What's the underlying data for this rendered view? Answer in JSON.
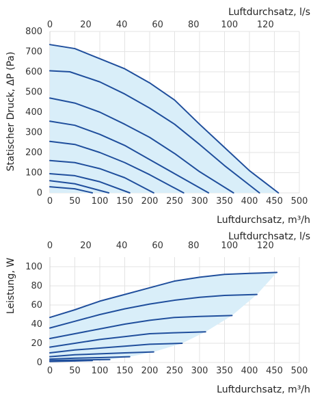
{
  "chart_data": [
    {
      "type": "line",
      "title": "",
      "xlabel": "Luftdurchsatz, m³/h",
      "x2label": "Luftdurchsatz, l/s",
      "ylabel": "Statischer Druck, ΔP (Pa)",
      "xlim": [
        0,
        500
      ],
      "ylim": [
        0,
        800
      ],
      "x2lim": [
        0,
        138.9
      ],
      "xticks": [
        "0",
        "50",
        "100",
        "150",
        "200",
        "250",
        "300",
        "350",
        "400",
        "450",
        "500"
      ],
      "x2ticks": [
        "0",
        "20",
        "40",
        "60",
        "80",
        "100",
        "120"
      ],
      "yticks": [
        "0",
        "100",
        "200",
        "300",
        "400",
        "500",
        "600",
        "700",
        "800"
      ],
      "grid": true,
      "fill_color": "#d9eef9",
      "line_color": "#1f4e9c",
      "series": [
        {
          "x": [
            0,
            50,
            100,
            150,
            200,
            250,
            300,
            350,
            400,
            458
          ],
          "y": [
            735,
            715,
            665,
            615,
            545,
            460,
            340,
            225,
            110,
            0
          ]
        },
        {
          "x": [
            0,
            40,
            100,
            150,
            200,
            250,
            300,
            350,
            420
          ],
          "y": [
            605,
            600,
            550,
            490,
            420,
            340,
            240,
            135,
            0
          ]
        },
        {
          "x": [
            0,
            50,
            100,
            150,
            200,
            250,
            300,
            368
          ],
          "y": [
            470,
            445,
            400,
            340,
            275,
            195,
            105,
            0
          ]
        },
        {
          "x": [
            0,
            50,
            100,
            150,
            200,
            250,
            318
          ],
          "y": [
            355,
            335,
            290,
            235,
            165,
            95,
            0
          ]
        },
        {
          "x": [
            0,
            50,
            100,
            150,
            200,
            268
          ],
          "y": [
            255,
            240,
            200,
            150,
            90,
            0
          ]
        },
        {
          "x": [
            0,
            50,
            100,
            150,
            208
          ],
          "y": [
            160,
            150,
            120,
            75,
            0
          ]
        },
        {
          "x": [
            0,
            50,
            100,
            160
          ],
          "y": [
            95,
            85,
            55,
            0
          ]
        },
        {
          "x": [
            0,
            50,
            118
          ],
          "y": [
            60,
            45,
            0
          ]
        },
        {
          "x": [
            0,
            50,
            85
          ],
          "y": [
            30,
            20,
            0
          ]
        }
      ]
    },
    {
      "type": "line",
      "title": "",
      "xlabel": "Luftdurchsatz, m³/h",
      "x2label": "Luftdurchsatz, l/s",
      "ylabel": "Leistung, W",
      "xlim": [
        0,
        500
      ],
      "ylim": [
        0,
        110
      ],
      "x2lim": [
        0,
        138.9
      ],
      "xticks": [
        "0",
        "50",
        "100",
        "150",
        "200",
        "250",
        "300",
        "350",
        "400",
        "450",
        "500"
      ],
      "x2ticks": [
        "0",
        "20",
        "40",
        "60",
        "80",
        "100",
        "120"
      ],
      "yticks": [
        "0",
        "20",
        "40",
        "60",
        "80",
        "100"
      ],
      "grid": true,
      "fill_color": "#d9eef9",
      "line_color": "#1f4e9c",
      "series": [
        {
          "x": [
            0,
            50,
            100,
            150,
            200,
            250,
            300,
            350,
            400,
            455
          ],
          "y": [
            47,
            55,
            64,
            71,
            78,
            85,
            89,
            92,
            93,
            94
          ]
        },
        {
          "x": [
            0,
            50,
            100,
            150,
            200,
            250,
            300,
            350,
            415
          ],
          "y": [
            36,
            43,
            50,
            56,
            61,
            65,
            68,
            70,
            71
          ]
        },
        {
          "x": [
            0,
            50,
            100,
            150,
            200,
            250,
            300,
            365
          ],
          "y": [
            25,
            30,
            35,
            40,
            44,
            47,
            48,
            49
          ]
        },
        {
          "x": [
            0,
            50,
            100,
            150,
            200,
            250,
            312
          ],
          "y": [
            16,
            20,
            24,
            27,
            30,
            31,
            32
          ]
        },
        {
          "x": [
            0,
            50,
            100,
            150,
            200,
            265
          ],
          "y": [
            10,
            13,
            15,
            17,
            19,
            20
          ]
        },
        {
          "x": [
            0,
            50,
            100,
            150,
            208
          ],
          "y": [
            6,
            8,
            9,
            10,
            11
          ]
        },
        {
          "x": [
            0,
            50,
            100,
            160
          ],
          "y": [
            3.5,
            4.5,
            5,
            6
          ]
        },
        {
          "x": [
            0,
            50,
            120
          ],
          "y": [
            2,
            2.5,
            3
          ]
        },
        {
          "x": [
            0,
            50,
            85
          ],
          "y": [
            1,
            1.5,
            2
          ]
        }
      ]
    }
  ]
}
